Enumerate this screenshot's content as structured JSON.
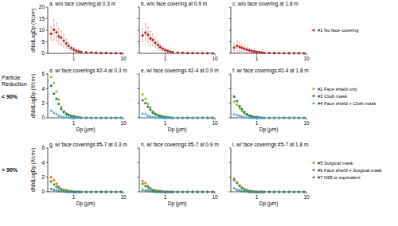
{
  "row_heading": "Particle Reduction",
  "row_labels": [
    "< 90%",
    "> 90%"
  ],
  "chart_data": [
    {
      "type": "scatter",
      "title": "a. w/o face covering at 0.3 m",
      "y_label": "dN/dLogDp (#/cm³)",
      "log": "x",
      "xlim": [
        0.3,
        10
      ],
      "xticks": [
        1,
        10
      ],
      "ylim": [
        0,
        20
      ],
      "yticks": [
        0,
        5,
        10,
        15,
        20
      ],
      "x": [
        0.35,
        0.4,
        0.45,
        0.5,
        0.56,
        0.63,
        0.71,
        0.79,
        0.89,
        1.0,
        1.12,
        1.26,
        1.41,
        1.78,
        2.24,
        2.82,
        3.55,
        4.47,
        5.62,
        7.08,
        8.91
      ],
      "series": [
        {
          "name": "#1 No face covering",
          "color": "#b0282a",
          "marker": "circle",
          "values": [
            8.5,
            10.2,
            9.1,
            7.4,
            6.8,
            5.5,
            4.3,
            3.2,
            2.3,
            1.6,
            1.1,
            0.8,
            0.6,
            0.4,
            0.3,
            0.2,
            0.1,
            0.1,
            0.05,
            0.05,
            0
          ],
          "errors": [
            3,
            4.5,
            4,
            3.5,
            3,
            2.5,
            2,
            1.6,
            1.2,
            0.9,
            0.6,
            0.5,
            0.4,
            0.3,
            0.2,
            0.15,
            0.1,
            0.1,
            0.05,
            0.05,
            0
          ]
        }
      ]
    },
    {
      "type": "scatter",
      "title": "b. w/o face covering at 0.9 m",
      "log": "x",
      "xlim": [
        0.3,
        10
      ],
      "xticks": [
        1,
        10
      ],
      "ylim": [
        0,
        20
      ],
      "yticks": [
        0,
        5,
        10,
        15,
        20
      ],
      "x": [
        0.35,
        0.4,
        0.45,
        0.5,
        0.56,
        0.63,
        0.71,
        0.79,
        0.89,
        1.0,
        1.12,
        1.26,
        1.41,
        1.78,
        2.24,
        2.82,
        3.55,
        4.47,
        5.62,
        7.08,
        8.91
      ],
      "series": [
        {
          "name": "#1 No face covering",
          "color": "#b0282a",
          "marker": "circle",
          "values": [
            7.8,
            9.0,
            8.0,
            6.5,
            5.8,
            4.6,
            3.6,
            2.7,
            2.0,
            1.4,
            1.0,
            0.7,
            0.5,
            0.35,
            0.25,
            0.15,
            0.1,
            0.05,
            0.05,
            0.02,
            0
          ],
          "errors": [
            2.8,
            3.8,
            3.4,
            3.0,
            2.6,
            2.1,
            1.7,
            1.4,
            1.0,
            0.8,
            0.5,
            0.4,
            0.3,
            0.25,
            0.2,
            0.1,
            0.08,
            0.05,
            0.04,
            0.02,
            0
          ]
        }
      ]
    },
    {
      "type": "scatter",
      "title": "c. w/o face covering at 1.8 m",
      "log": "x",
      "xlim": [
        0.3,
        10
      ],
      "xticks": [
        1,
        10
      ],
      "ylim": [
        0,
        20
      ],
      "yticks": [
        0,
        5,
        10,
        15,
        20
      ],
      "x": [
        0.35,
        0.4,
        0.45,
        0.5,
        0.56,
        0.63,
        0.71,
        0.79,
        0.89,
        1.0,
        1.12,
        1.26,
        1.41,
        1.78,
        2.24,
        2.82,
        3.55,
        4.47,
        5.62,
        7.08,
        8.91
      ],
      "series": [
        {
          "name": "#1 No face covering",
          "color": "#b0282a",
          "marker": "circle",
          "values": [
            2.5,
            3.2,
            2.8,
            2.4,
            2.0,
            1.6,
            1.3,
            1.0,
            0.8,
            0.6,
            0.45,
            0.35,
            0.25,
            0.18,
            0.12,
            0.08,
            0.05,
            0.03,
            0.02,
            0.01,
            0
          ],
          "errors": [
            2,
            2.5,
            2.2,
            1.8,
            1.5,
            1.2,
            1,
            0.8,
            0.6,
            0.5,
            0.4,
            0.3,
            0.2,
            0.15,
            0.1,
            0.06,
            0.04,
            0.03,
            0.02,
            0.01,
            0
          ]
        }
      ]
    },
    {
      "type": "scatter",
      "title": "d. w/ face coverings #2-4 at 0.3 m",
      "y_label": "dN/dLogDp (#/cm³)",
      "x_label": "Dp (μm)",
      "log": "x",
      "xlim": [
        0.3,
        10
      ],
      "xticks": [
        1,
        10
      ],
      "ylim": [
        0,
        6
      ],
      "yticks": [
        0,
        2,
        4,
        6
      ],
      "x": [
        0.35,
        0.4,
        0.45,
        0.5,
        0.56,
        0.63,
        0.71,
        0.79,
        0.89,
        1.0,
        1.12,
        1.26,
        1.41,
        1.78,
        2.24,
        2.82,
        3.55,
        4.47,
        5.62,
        7.08,
        8.91
      ],
      "series": [
        {
          "name": "#2 Face shield only",
          "color": "#9cb83a",
          "marker": "circle",
          "values": [
            5.6,
            4.8,
            3.6,
            2.5,
            1.5,
            0.9,
            0.6,
            0.4,
            0.3,
            0.2,
            0.1,
            0.1,
            0.05,
            0,
            0,
            0,
            0,
            0,
            0,
            0,
            0
          ]
        },
        {
          "name": "#3 Cloth mask",
          "color": "#2f7f5f",
          "marker": "circle",
          "values": [
            4.4,
            3.3,
            2.6,
            1.9,
            1.2,
            0.8,
            0.5,
            0.4,
            0.2,
            0.2,
            0.1,
            0.05,
            0,
            0,
            0,
            0,
            0,
            0,
            0,
            0,
            0
          ]
        },
        {
          "name": "#4 Face shield + Cloth mask",
          "color": "#4ba3d6",
          "marker": "triangle",
          "values": [
            1.0,
            0.7,
            0.5,
            0.3,
            0.2,
            0.1,
            0.1,
            0.05,
            0,
            0,
            0,
            0,
            0,
            0,
            0,
            0,
            0,
            0,
            0,
            0,
            0
          ]
        }
      ]
    },
    {
      "type": "scatter",
      "title": "e. w/ face coverings #2-4 at 0.9 m",
      "x_label": "Dp (μm)",
      "log": "x",
      "xlim": [
        0.3,
        10
      ],
      "xticks": [
        1,
        10
      ],
      "ylim": [
        0,
        6
      ],
      "yticks": [
        0,
        2,
        4,
        6
      ],
      "x": [
        0.35,
        0.4,
        0.45,
        0.5,
        0.56,
        0.63,
        0.71,
        0.79,
        0.89,
        1.0,
        1.12,
        1.26,
        1.41,
        1.78,
        2.24,
        2.82,
        3.55,
        4.47,
        5.62,
        7.08,
        8.91
      ],
      "series": [
        {
          "name": "#2 Face shield only",
          "color": "#9cb83a",
          "marker": "circle",
          "values": [
            3.2,
            2.6,
            1.9,
            1.4,
            0.9,
            0.6,
            0.4,
            0.3,
            0.2,
            0.1,
            0.1,
            0.05,
            0,
            0,
            0,
            0,
            0,
            0,
            0,
            0,
            0
          ]
        },
        {
          "name": "#3 Cloth mask",
          "color": "#2f7f5f",
          "marker": "circle",
          "values": [
            2.4,
            2.0,
            1.5,
            1.1,
            0.7,
            0.5,
            0.3,
            0.2,
            0.1,
            0.1,
            0.05,
            0,
            0,
            0,
            0,
            0,
            0,
            0,
            0,
            0,
            0
          ]
        },
        {
          "name": "#4 Face shield + Cloth mask",
          "color": "#4ba3d6",
          "marker": "triangle",
          "values": [
            0.6,
            0.5,
            0.3,
            0.2,
            0.1,
            0.1,
            0.05,
            0,
            0,
            0,
            0,
            0,
            0,
            0,
            0,
            0,
            0,
            0,
            0,
            0,
            0
          ]
        }
      ]
    },
    {
      "type": "scatter",
      "title": "f. w/ face coverings #2-4 at 1.8 m",
      "x_label": "Dp (μm)",
      "log": "x",
      "xlim": [
        0.3,
        10
      ],
      "xticks": [
        1,
        10
      ],
      "ylim": [
        0,
        6
      ],
      "yticks": [
        0,
        2,
        4,
        6
      ],
      "x": [
        0.35,
        0.4,
        0.45,
        0.5,
        0.56,
        0.63,
        0.71,
        0.79,
        0.89,
        1.0,
        1.12,
        1.26,
        1.41,
        1.78,
        2.24,
        2.82,
        3.55,
        4.47,
        5.62,
        7.08,
        8.91
      ],
      "series": [
        {
          "name": "#2 Face shield only",
          "color": "#9cb83a",
          "marker": "circle",
          "values": [
            2.2,
            1.8,
            1.3,
            0.9,
            0.6,
            0.4,
            0.3,
            0.2,
            0.1,
            0.1,
            0.05,
            0,
            0,
            0,
            0,
            0,
            0,
            0,
            0,
            0,
            0
          ]
        },
        {
          "name": "#3 Cloth mask",
          "color": "#2f7f5f",
          "marker": "circle",
          "values": [
            2.9,
            2.3,
            1.6,
            1.2,
            0.8,
            0.5,
            0.3,
            0.2,
            0.1,
            0.1,
            0.05,
            0,
            0,
            0,
            0,
            0,
            0,
            0,
            0,
            0,
            0
          ]
        },
        {
          "name": "#4 Face shield + Cloth mask",
          "color": "#4ba3d6",
          "marker": "triangle",
          "values": [
            0.5,
            0.4,
            0.3,
            0.2,
            0.1,
            0.05,
            0,
            0,
            0,
            0,
            0,
            0,
            0,
            0,
            0,
            0,
            0,
            0,
            0,
            0,
            0
          ]
        }
      ]
    },
    {
      "type": "scatter",
      "title": "g. w/ face coverings #5-7 at 0.3 m",
      "y_label": "dN/dLogDp (#/cm³)",
      "x_label": "Dp (μm)",
      "log": "x",
      "xlim": [
        0.3,
        10
      ],
      "xticks": [
        1,
        10
      ],
      "ylim": [
        0,
        6
      ],
      "yticks": [
        0,
        2,
        4,
        6
      ],
      "x": [
        0.35,
        0.4,
        0.45,
        0.5,
        0.56,
        0.63,
        0.71,
        0.79,
        0.89,
        1.0,
        1.12,
        1.26,
        1.41,
        1.78,
        2.24,
        2.82,
        3.55,
        4.47,
        5.62,
        7.08,
        8.91
      ],
      "series": [
        {
          "name": "#5 Surgical mask",
          "color": "#e8792a",
          "marker": "circle",
          "values": [
            2.0,
            1.6,
            1.1,
            0.7,
            0.4,
            0.3,
            0.2,
            0.1,
            0.1,
            0.05,
            0,
            0,
            0,
            0,
            0,
            0,
            0,
            0,
            0,
            0,
            0
          ]
        },
        {
          "name": "#6 Face shield + Surgical mask",
          "color": "#3f9a5a",
          "marker": "circle",
          "values": [
            1.4,
            1.0,
            0.7,
            0.5,
            0.3,
            0.2,
            0.1,
            0.1,
            0.05,
            0,
            0,
            0,
            0,
            0,
            0,
            0,
            0,
            0,
            0,
            0,
            0
          ]
        },
        {
          "name": "#7 N95 or equivalent",
          "color": "#3a7f8c",
          "marker": "triangle",
          "values": [
            0.4,
            0.3,
            0.2,
            0.1,
            0.1,
            0.05,
            0,
            0,
            0,
            0,
            0,
            0,
            0,
            0,
            0,
            0,
            0,
            0,
            0,
            0,
            0
          ]
        }
      ]
    },
    {
      "type": "scatter",
      "title": "h. w/ face coverings #5-7 at 0.9 m",
      "x_label": "Dp (μm)",
      "log": "x",
      "xlim": [
        0.3,
        10
      ],
      "xticks": [
        1,
        10
      ],
      "ylim": [
        0,
        6
      ],
      "yticks": [
        0,
        2,
        4,
        6
      ],
      "x": [
        0.35,
        0.4,
        0.45,
        0.5,
        0.56,
        0.63,
        0.71,
        0.79,
        0.89,
        1.0,
        1.12,
        1.26,
        1.41,
        1.78,
        2.24,
        2.82,
        3.55,
        4.47,
        5.62,
        7.08,
        8.91
      ],
      "series": [
        {
          "name": "#5 Surgical mask",
          "color": "#e8792a",
          "marker": "circle",
          "values": [
            1.5,
            1.2,
            0.8,
            0.5,
            0.3,
            0.2,
            0.1,
            0.1,
            0.05,
            0,
            0,
            0,
            0,
            0,
            0,
            0,
            0,
            0,
            0,
            0,
            0
          ]
        },
        {
          "name": "#6 Face shield + Surgical mask",
          "color": "#3f9a5a",
          "marker": "circle",
          "values": [
            1.1,
            0.8,
            0.6,
            0.4,
            0.2,
            0.1,
            0.1,
            0.05,
            0,
            0,
            0,
            0,
            0,
            0,
            0,
            0,
            0,
            0,
            0,
            0,
            0
          ]
        },
        {
          "name": "#7 N95 or equivalent",
          "color": "#3a7f8c",
          "marker": "triangle",
          "values": [
            0.3,
            0.2,
            0.2,
            0.1,
            0.05,
            0,
            0,
            0,
            0,
            0,
            0,
            0,
            0,
            0,
            0,
            0,
            0,
            0,
            0,
            0,
            0
          ]
        }
      ]
    },
    {
      "type": "scatter",
      "title": "i. w/ face coverings #5-7 at 1.8 m",
      "x_label": "Dp (μm)",
      "log": "x",
      "xlim": [
        0.3,
        10
      ],
      "xticks": [
        1,
        10
      ],
      "ylim": [
        0,
        6
      ],
      "yticks": [
        0,
        2,
        4,
        6
      ],
      "x": [
        0.35,
        0.4,
        0.45,
        0.5,
        0.56,
        0.63,
        0.71,
        0.79,
        0.89,
        1.0,
        1.12,
        1.26,
        1.41,
        1.78,
        2.24,
        2.82,
        3.55,
        4.47,
        5.62,
        7.08,
        8.91
      ],
      "series": [
        {
          "name": "#5 Surgical mask",
          "color": "#e8792a",
          "marker": "circle",
          "values": [
            1.8,
            1.3,
            0.9,
            0.6,
            0.4,
            0.2,
            0.1,
            0.1,
            0.05,
            0,
            0,
            0,
            0,
            0,
            0,
            0,
            0,
            0,
            0,
            0,
            0
          ]
        },
        {
          "name": "#6 Face shield + Surgical mask",
          "color": "#3f9a5a",
          "marker": "circle",
          "values": [
            1.6,
            1.2,
            0.8,
            0.5,
            0.3,
            0.2,
            0.1,
            0.05,
            0,
            0,
            0,
            0,
            0,
            0,
            0,
            0,
            0,
            0,
            0,
            0,
            0
          ]
        },
        {
          "name": "#7 N95 or equivalent",
          "color": "#3a7f8c",
          "marker": "triangle",
          "values": [
            0.5,
            0.3,
            0.2,
            0.1,
            0.1,
            0.05,
            0,
            0,
            0,
            0,
            0,
            0,
            0,
            0,
            0,
            0,
            0,
            0,
            0,
            0,
            0
          ]
        }
      ]
    }
  ]
}
